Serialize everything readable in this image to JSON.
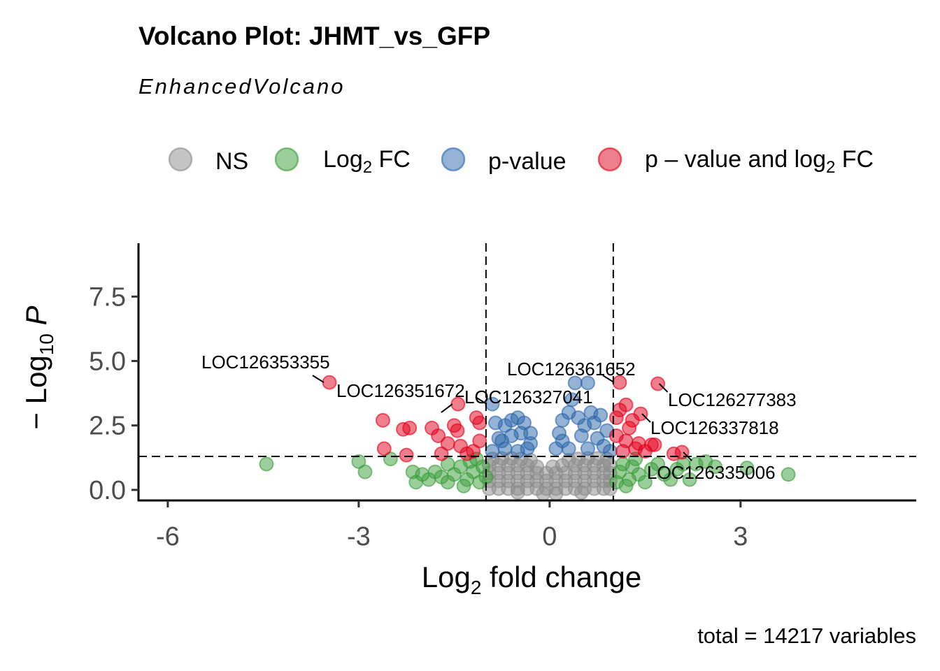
{
  "chart_data": {
    "type": "scatter",
    "title": "Volcano Plot: JHMT_vs_GFP",
    "subtitle": "EnhancedVolcano",
    "caption": "total = 14217 variables",
    "xlabel": {
      "main": "Log",
      "sub": "2",
      "tail": " fold change"
    },
    "ylabel": {
      "pre": "− Log",
      "sub": "10",
      "tail": " P"
    },
    "xlim": [
      -6.46,
      5.76
    ],
    "ylim": [
      -0.41,
      9.57
    ],
    "xticks": [
      -6,
      -3,
      0,
      3
    ],
    "xtick_labels": [
      "-6",
      "-3",
      "0",
      "3"
    ],
    "yticks": [
      0,
      2.5,
      5,
      7.5
    ],
    "ytick_labels": [
      "0.0",
      "2.5",
      "5.0",
      "7.5"
    ],
    "fc_cutoff": 1,
    "p_cutoff_neglog10": 1.3,
    "grid": false,
    "legend_position": "top",
    "legend": [
      {
        "key": "NS",
        "label": {
          "main": "NS",
          "sub": "",
          "tail": ""
        },
        "color": "#8c8c8c"
      },
      {
        "key": "FC",
        "label": {
          "main": "Log",
          "sub": "2",
          "tail": " FC"
        },
        "color": "#3a9e3a"
      },
      {
        "key": "P",
        "label": {
          "main": "p-value",
          "sub": "",
          "tail": ""
        },
        "color": "#2a66aa"
      },
      {
        "key": "PFC",
        "label": {
          "main": "p – value and log",
          "sub": "2",
          "tail": " FC"
        },
        "color": "#e2001c"
      }
    ],
    "series": {
      "NS": [
        [
          -0.95,
          0.05
        ],
        [
          -0.8,
          0.05
        ],
        [
          -0.65,
          0.05
        ],
        [
          -0.5,
          0.05
        ],
        [
          -0.35,
          0.05
        ],
        [
          -0.2,
          0.05
        ],
        [
          -0.05,
          0.05
        ],
        [
          0.1,
          0.05
        ],
        [
          0.25,
          0.05
        ],
        [
          0.4,
          0.05
        ],
        [
          0.55,
          0.05
        ],
        [
          0.7,
          0.05
        ],
        [
          0.85,
          0.05
        ],
        [
          0.95,
          0.05
        ],
        [
          -0.95,
          0.35
        ],
        [
          -0.8,
          0.35
        ],
        [
          -0.65,
          0.35
        ],
        [
          -0.5,
          0.35
        ],
        [
          -0.35,
          0.35
        ],
        [
          -0.2,
          0.35
        ],
        [
          -0.05,
          0.35
        ],
        [
          0.1,
          0.35
        ],
        [
          0.25,
          0.35
        ],
        [
          0.4,
          0.35
        ],
        [
          0.55,
          0.35
        ],
        [
          0.7,
          0.35
        ],
        [
          0.85,
          0.35
        ],
        [
          0.95,
          0.35
        ],
        [
          -0.95,
          0.65
        ],
        [
          -0.8,
          0.65
        ],
        [
          -0.65,
          0.65
        ],
        [
          -0.5,
          0.65
        ],
        [
          -0.35,
          0.65
        ],
        [
          -0.2,
          0.65
        ],
        [
          -0.05,
          0.65
        ],
        [
          0.1,
          0.65
        ],
        [
          0.25,
          0.65
        ],
        [
          0.4,
          0.65
        ],
        [
          0.55,
          0.65
        ],
        [
          0.7,
          0.65
        ],
        [
          0.85,
          0.65
        ],
        [
          0.95,
          0.65
        ],
        [
          -0.95,
          0.95
        ],
        [
          -0.8,
          0.95
        ],
        [
          -0.65,
          0.95
        ],
        [
          -0.5,
          0.95
        ],
        [
          -0.35,
          0.95
        ],
        [
          -0.2,
          0.9
        ],
        [
          0.05,
          0.9
        ],
        [
          0.2,
          0.95
        ],
        [
          0.4,
          0.95
        ],
        [
          0.55,
          0.95
        ],
        [
          0.7,
          0.95
        ],
        [
          0.85,
          0.95
        ],
        [
          0.95,
          0.95
        ],
        [
          -0.9,
          1.2
        ],
        [
          -0.75,
          1.22
        ],
        [
          -0.6,
          1.22
        ],
        [
          -0.45,
          1.2
        ],
        [
          -0.3,
          1.15
        ],
        [
          0.3,
          1.15
        ],
        [
          0.45,
          1.2
        ],
        [
          0.6,
          1.22
        ],
        [
          0.75,
          1.22
        ],
        [
          0.9,
          1.2
        ],
        [
          -0.1,
          -0.15
        ],
        [
          0.1,
          -0.15
        ],
        [
          -0.5,
          -0.1
        ],
        [
          0.5,
          -0.1
        ]
      ],
      "FC": [
        [
          -4.45,
          1.0
        ],
        [
          -3.0,
          1.1
        ],
        [
          -2.9,
          0.7
        ],
        [
          -2.5,
          1.2
        ],
        [
          -2.15,
          0.7
        ],
        [
          -2.0,
          0.6
        ],
        [
          -1.9,
          0.4
        ],
        [
          -1.8,
          0.7
        ],
        [
          -1.7,
          0.5
        ],
        [
          -1.6,
          0.3
        ],
        [
          -1.5,
          0.6
        ],
        [
          -1.4,
          0.9
        ],
        [
          -1.3,
          0.4
        ],
        [
          -1.25,
          1.1
        ],
        [
          -1.2,
          0.7
        ],
        [
          -1.1,
          0.3
        ],
        [
          -1.05,
          0.9
        ],
        [
          -1.15,
          1.2
        ],
        [
          -1.0,
          0.5
        ],
        [
          -1.6,
          1.0
        ],
        [
          -2.1,
          0.3
        ],
        [
          -1.35,
          0.15
        ],
        [
          1.05,
          0.3
        ],
        [
          1.1,
          0.7
        ],
        [
          1.15,
          1.0
        ],
        [
          1.25,
          0.4
        ],
        [
          1.3,
          0.9
        ],
        [
          1.4,
          0.6
        ],
        [
          1.5,
          0.3
        ],
        [
          1.6,
          0.8
        ],
        [
          1.7,
          1.0
        ],
        [
          1.8,
          0.6
        ],
        [
          1.9,
          0.4
        ],
        [
          2.0,
          0.8
        ],
        [
          2.1,
          1.0
        ],
        [
          2.2,
          0.4
        ],
        [
          2.3,
          1.0
        ],
        [
          2.45,
          1.1
        ],
        [
          3.1,
          0.85
        ],
        [
          3.75,
          0.6
        ],
        [
          1.2,
          0.15
        ],
        [
          1.35,
          1.2
        ],
        [
          2.6,
          0.9
        ]
      ],
      "P": [
        [
          -0.9,
          1.5
        ],
        [
          -0.8,
          2.0
        ],
        [
          -0.7,
          2.5
        ],
        [
          -0.6,
          2.7
        ],
        [
          -0.5,
          2.8
        ],
        [
          -0.4,
          2.6
        ],
        [
          -0.3,
          2.2
        ],
        [
          -0.35,
          1.6
        ],
        [
          -0.5,
          1.5
        ],
        [
          -0.7,
          1.6
        ],
        [
          -0.85,
          2.6
        ],
        [
          -0.6,
          2.1
        ],
        [
          -0.45,
          2.2
        ],
        [
          -0.75,
          1.9
        ],
        [
          -0.3,
          1.8
        ],
        [
          -0.9,
          3.33
        ],
        [
          0.1,
          1.6
        ],
        [
          0.15,
          2.2
        ],
        [
          0.2,
          2.7
        ],
        [
          0.3,
          3.0
        ],
        [
          0.35,
          3.5
        ],
        [
          0.4,
          4.15
        ],
        [
          0.6,
          4.15
        ],
        [
          0.45,
          2.8
        ],
        [
          0.55,
          2.5
        ],
        [
          0.7,
          2.6
        ],
        [
          0.8,
          2.9
        ],
        [
          0.9,
          2.3
        ],
        [
          0.85,
          1.7
        ],
        [
          0.6,
          1.6
        ],
        [
          0.3,
          1.6
        ],
        [
          0.5,
          2.1
        ],
        [
          0.75,
          2.0
        ],
        [
          0.2,
          1.9
        ],
        [
          0.95,
          1.5
        ],
        [
          0.65,
          3.0
        ]
      ],
      "PFC": [
        [
          -3.46,
          4.17
        ],
        [
          -1.44,
          3.33
        ],
        [
          -2.62,
          2.7
        ],
        [
          -2.3,
          2.35
        ],
        [
          -2.2,
          2.4
        ],
        [
          -1.85,
          2.4
        ],
        [
          -1.5,
          2.5
        ],
        [
          -1.45,
          2.3
        ],
        [
          -1.15,
          2.8
        ],
        [
          -1.1,
          2.6
        ],
        [
          -2.6,
          1.6
        ],
        [
          -2.25,
          1.35
        ],
        [
          -1.75,
          2.1
        ],
        [
          -1.6,
          1.8
        ],
        [
          -1.4,
          1.7
        ],
        [
          -1.3,
          1.4
        ],
        [
          -1.1,
          1.9
        ],
        [
          -1.2,
          1.5
        ],
        [
          -1.7,
          1.4
        ],
        [
          1.1,
          4.17
        ],
        [
          1.7,
          4.12
        ],
        [
          1.43,
          2.95
        ],
        [
          1.1,
          3.1
        ],
        [
          1.2,
          3.3
        ],
        [
          1.05,
          2.8
        ],
        [
          1.3,
          2.7
        ],
        [
          1.25,
          2.4
        ],
        [
          1.05,
          2.1
        ],
        [
          1.2,
          1.9
        ],
        [
          1.4,
          1.8
        ],
        [
          1.6,
          1.75
        ],
        [
          1.65,
          1.75
        ],
        [
          1.35,
          1.6
        ],
        [
          1.15,
          1.5
        ],
        [
          1.95,
          1.4
        ],
        [
          2.08,
          1.46
        ],
        [
          1.5,
          1.5
        ]
      ]
    },
    "labels": [
      {
        "gene": "LOC126353355",
        "x": -3.46,
        "y": 4.17
      },
      {
        "gene": "LOC126351672",
        "x": -1.44,
        "y": 3.33
      },
      {
        "gene": "LOC126327041",
        "x": -0.9,
        "y": 3.33
      },
      {
        "gene": "LOC126361652",
        "x": 1.1,
        "y": 4.17
      },
      {
        "gene": "LOC126277383",
        "x": 1.7,
        "y": 4.12
      },
      {
        "gene": "LOC126337818",
        "x": 1.43,
        "y": 2.95
      },
      {
        "gene": "LOC126335006",
        "x": 2.08,
        "y": 1.46
      }
    ]
  }
}
